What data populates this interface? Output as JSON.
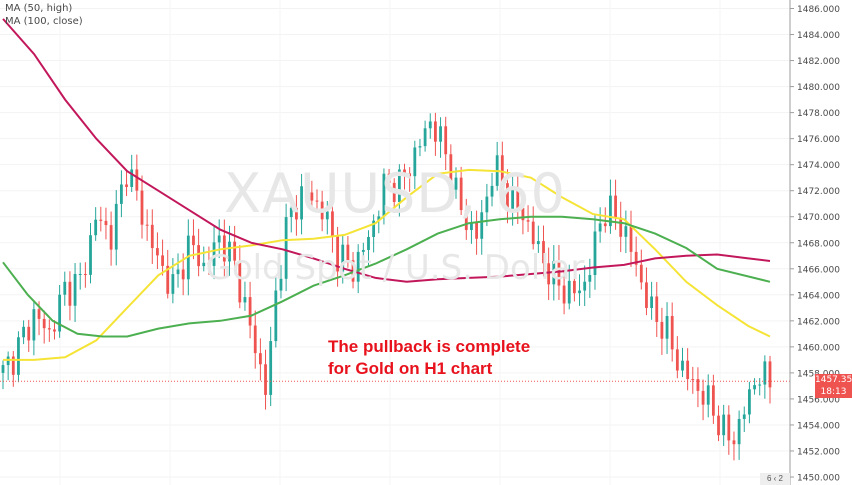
{
  "watermark": {
    "symbol": "XAUUSD, 60",
    "description": "Gold Spot / U.S. Dollar"
  },
  "legend": [
    "MA (50, high)",
    "MA (100, close)"
  ],
  "annotation": {
    "line1": "The pullback is complete",
    "line2": "for Gold on H1 chart",
    "color": "#e8121d"
  },
  "last_price": {
    "value": "1457.358",
    "countdown": "18:13"
  },
  "axis_corner": "6 ‹ 2",
  "colors": {
    "up": "#26a69a",
    "down": "#ef5350",
    "ma50": "#f5e436",
    "ma100": "#c2185b",
    "green_ma": "#4caf50"
  },
  "chart_data": {
    "type": "candlestick",
    "symbol": "XAUUSD",
    "timeframe": "60",
    "ylim": [
      1450,
      1486.5
    ],
    "y_ticks": [
      1450,
      1452,
      1454,
      1456,
      1458,
      1460,
      1462,
      1464,
      1466,
      1468,
      1470,
      1472,
      1474,
      1476,
      1478,
      1480,
      1482,
      1484,
      1486
    ],
    "current_price": 1457.358,
    "candle_count": 150,
    "close_path": [
      [
        0,
        1458.0
      ],
      [
        5,
        1460.0
      ],
      [
        10,
        1462.5
      ],
      [
        15,
        1461.0
      ],
      [
        20,
        1464.5
      ],
      [
        25,
        1465.0
      ],
      [
        30,
        1470.0
      ],
      [
        35,
        1468.5
      ],
      [
        40,
        1474.0
      ],
      [
        45,
        1470.0
      ],
      [
        50,
        1466.5
      ],
      [
        55,
        1464.5
      ],
      [
        60,
        1468.0
      ],
      [
        65,
        1466.0
      ],
      [
        70,
        1468.5
      ],
      [
        75,
        1466.0
      ],
      [
        80,
        1461.0
      ],
      [
        85,
        1456.5
      ],
      [
        88,
        1464.5
      ],
      [
        92,
        1470.0
      ],
      [
        97,
        1472.0
      ],
      [
        103,
        1470.5
      ],
      [
        108,
        1467.0
      ],
      [
        113,
        1466.0
      ],
      [
        118,
        1468.5
      ],
      [
        123,
        1472.5
      ],
      [
        128,
        1472.5
      ],
      [
        133,
        1475.0
      ],
      [
        138,
        1477.5
      ],
      [
        143,
        1474.5
      ],
      [
        148,
        1470.0
      ],
      [
        153,
        1468.5
      ],
      [
        158,
        1474.0
      ],
      [
        163,
        1471.5
      ],
      [
        168,
        1470.0
      ],
      [
        173,
        1467.0
      ],
      [
        178,
        1465.0
      ],
      [
        183,
        1464.0
      ],
      [
        188,
        1465.0
      ],
      [
        193,
        1470.5
      ],
      [
        198,
        1470.0
      ],
      [
        203,
        1467.0
      ],
      [
        208,
        1463.0
      ],
      [
        213,
        1461.5
      ],
      [
        218,
        1458.5
      ],
      [
        223,
        1457.0
      ],
      [
        228,
        1455.5
      ],
      [
        233,
        1453.0
      ],
      [
        236,
        1453.2
      ],
      [
        240,
        1456.0
      ],
      [
        243,
        1458.0
      ],
      [
        246,
        1457.36
      ]
    ],
    "ma50_high": [
      [
        0,
        1459.0
      ],
      [
        10,
        1459.0
      ],
      [
        20,
        1459.2
      ],
      [
        30,
        1460.5
      ],
      [
        40,
        1463.0
      ],
      [
        50,
        1465.5
      ],
      [
        60,
        1467.0
      ],
      [
        70,
        1467.5
      ],
      [
        80,
        1467.8
      ],
      [
        90,
        1468.2
      ],
      [
        100,
        1468.3
      ],
      [
        110,
        1468.6
      ],
      [
        120,
        1469.5
      ],
      [
        130,
        1471.5
      ],
      [
        140,
        1473.3
      ],
      [
        150,
        1473.6
      ],
      [
        160,
        1473.5
      ],
      [
        170,
        1473.0
      ],
      [
        180,
        1471.5
      ],
      [
        190,
        1470.2
      ],
      [
        200,
        1469.8
      ],
      [
        210,
        1467.5
      ],
      [
        220,
        1465.0
      ],
      [
        230,
        1463.2
      ],
      [
        240,
        1461.6
      ],
      [
        247,
        1460.8
      ]
    ],
    "ma100_close": [
      [
        0,
        1485.2
      ],
      [
        10,
        1482.5
      ],
      [
        20,
        1479.0
      ],
      [
        30,
        1476.0
      ],
      [
        40,
        1473.5
      ],
      [
        50,
        1472.0
      ],
      [
        60,
        1470.5
      ],
      [
        70,
        1469.0
      ],
      [
        80,
        1468.0
      ],
      [
        90,
        1467.5
      ],
      [
        100,
        1466.8
      ],
      [
        110,
        1466.0
      ],
      [
        120,
        1465.3
      ],
      [
        130,
        1465.0
      ],
      [
        140,
        1465.2
      ],
      [
        150,
        1465.3
      ],
      [
        160,
        1465.4
      ],
      [
        170,
        1465.6
      ],
      [
        180,
        1465.8
      ],
      [
        190,
        1466.1
      ],
      [
        200,
        1466.3
      ],
      [
        210,
        1466.8
      ],
      [
        220,
        1467.0
      ],
      [
        230,
        1467.1
      ],
      [
        240,
        1466.8
      ],
      [
        247,
        1466.6
      ]
    ],
    "ma_green": [
      [
        0,
        1466.5
      ],
      [
        8,
        1464.0
      ],
      [
        16,
        1462.0
      ],
      [
        24,
        1461.0
      ],
      [
        32,
        1460.8
      ],
      [
        40,
        1460.8
      ],
      [
        50,
        1461.4
      ],
      [
        60,
        1461.8
      ],
      [
        70,
        1462.0
      ],
      [
        80,
        1462.4
      ],
      [
        90,
        1463.5
      ],
      [
        100,
        1464.7
      ],
      [
        110,
        1465.5
      ],
      [
        120,
        1466.4
      ],
      [
        130,
        1467.5
      ],
      [
        140,
        1468.7
      ],
      [
        150,
        1469.5
      ],
      [
        160,
        1469.8
      ],
      [
        170,
        1470.0
      ],
      [
        180,
        1470.0
      ],
      [
        190,
        1469.8
      ],
      [
        200,
        1469.5
      ],
      [
        210,
        1468.7
      ],
      [
        220,
        1467.6
      ],
      [
        230,
        1466.0
      ],
      [
        247,
        1465.0
      ]
    ]
  }
}
